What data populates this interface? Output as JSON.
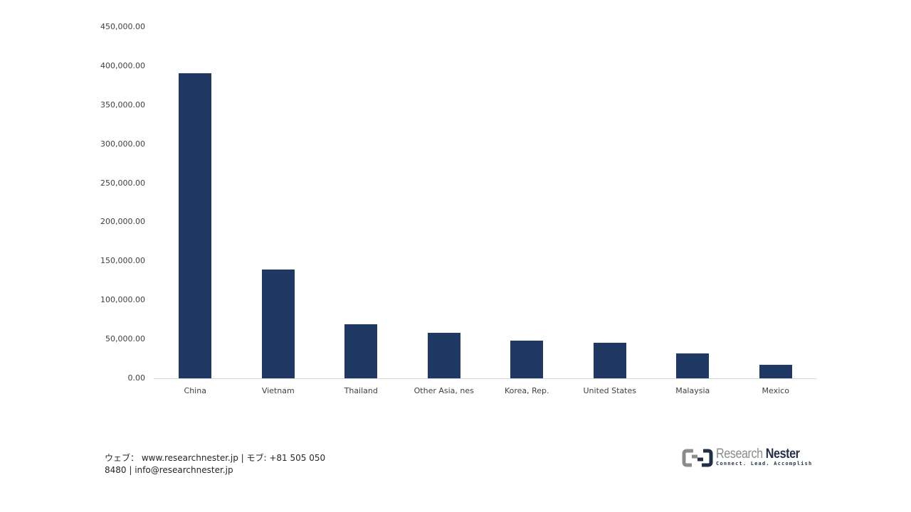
{
  "chart_data": {
    "type": "bar",
    "title": "",
    "xlabel": "",
    "ylabel": "",
    "ylim": [
      0,
      450000
    ],
    "yticks": [
      "0.00",
      "50,000.00",
      "100,000.00",
      "150,000.00",
      "200,000.00",
      "250,000.00",
      "300,000.00",
      "350,000.00",
      "400,000.00",
      "450,000.00"
    ],
    "grid": false,
    "legend": null,
    "categories": [
      "China",
      "Vietnam",
      "Thailand",
      "Other Asia, nes",
      "Korea, Rep.",
      "United States",
      "Malaysia",
      "Mexico"
    ],
    "values": [
      391000,
      139500,
      69000,
      58500,
      48500,
      45500,
      32000,
      17500
    ],
    "bar_color": "#203864"
  },
  "footer": {
    "line1": "ウェブ： www.researchnester.jp | モブ: +81 505 050",
    "line2": "8480 | info@researchnester.jp"
  },
  "logo": {
    "name_light": "Research ",
    "name_bold": "Nester",
    "tagline": "Connect. Lead. Accomplish"
  }
}
